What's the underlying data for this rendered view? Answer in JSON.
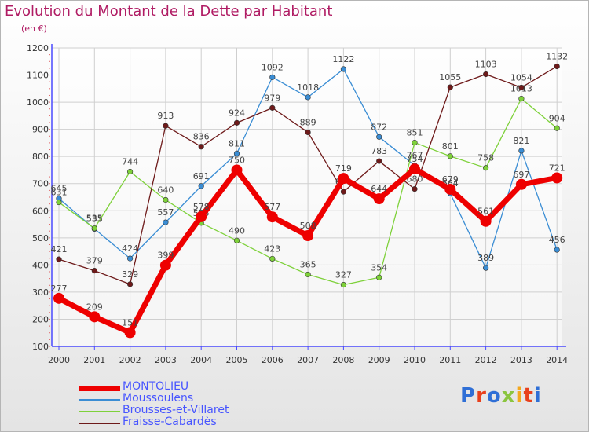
{
  "title": "Evolution du Montant de la Dette par Habitant",
  "subtitle": "(en €)",
  "logo": "Proxiti",
  "colors": {
    "title": "#b01c64",
    "axis": "#4a4aff",
    "grid": "#cfcfcf",
    "legend_text": "#4755ff"
  },
  "chart_data": {
    "type": "line",
    "x": [
      2000,
      2001,
      2002,
      2003,
      2004,
      2005,
      2006,
      2007,
      2008,
      2009,
      2010,
      2011,
      2012,
      2013,
      2014
    ],
    "ylim": [
      100,
      1200
    ],
    "yticks": [
      100,
      200,
      300,
      400,
      500,
      600,
      700,
      800,
      900,
      1000,
      1100,
      1200
    ],
    "grid": true,
    "legend_position": "bottom-left",
    "series": [
      {
        "name": "Moussoulens",
        "color": "#3a8dd4",
        "values": [
          645,
          533,
          424,
          557,
          691,
          811,
          1092,
          1018,
          1122,
          872,
          767,
          664,
          389,
          821,
          456
        ]
      },
      {
        "name": "Brousses-et-Villaret",
        "color": "#7ed13a",
        "values": [
          631,
          535,
          744,
          640,
          555,
          490,
          423,
          365,
          327,
          354,
          851,
          801,
          758,
          1013,
          904
        ]
      },
      {
        "name": "Fraisse-Cabardès",
        "color": "#6e1a1a",
        "values": [
          421,
          379,
          329,
          913,
          836,
          924,
          979,
          889,
          670,
          783,
          680,
          1055,
          1103,
          1054,
          1132
        ]
      },
      {
        "name": "MONTOLIEU",
        "color": "#ee0000",
        "values": [
          277,
          209,
          151,
          399,
          578,
          750,
          577,
          508,
          719,
          644,
          754,
          679,
          561,
          697,
          721
        ]
      }
    ]
  }
}
